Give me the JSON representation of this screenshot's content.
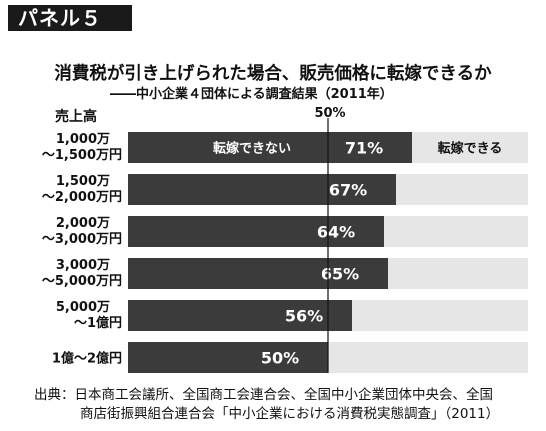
{
  "panel_label": "パネル５",
  "chart_data": {
    "type": "bar",
    "orientation": "horizontal",
    "stacked_percent": true,
    "title": "消費税が引き上げられた場合、販売価格に転嫁できるか",
    "subtitle": "――中小企業４団体による調査結果（2011年）",
    "ylabel": "売上高",
    "midline_label": "50%",
    "xlim": [
      0,
      100
    ],
    "categories": [
      [
        "1,000万",
        "～1,500万円"
      ],
      [
        "1,500万",
        "～2,000万円"
      ],
      [
        "2,000万",
        "～3,000万円"
      ],
      [
        "3,000万",
        "～5,000万円"
      ],
      [
        "5,000万",
        "～1億円"
      ],
      [
        "1億～2億円"
      ]
    ],
    "series": [
      {
        "name": "転嫁できない",
        "values": [
          71,
          67,
          64,
          65,
          56,
          50
        ]
      },
      {
        "name": "転嫁できる",
        "values": [
          29,
          33,
          36,
          35,
          44,
          50
        ]
      }
    ],
    "value_labels": [
      "71%",
      "67%",
      "64%",
      "65%",
      "56%",
      "50%"
    ],
    "colors": {
      "cannot": "#3b3b3b",
      "can": "#e6e6e6",
      "label_text": "#ffffff",
      "midline": "#111111"
    }
  },
  "source": {
    "line1": "出典：日本商工会議所、全国商工会連合会、全国中小企業団体中央会、全国",
    "line2": "商店街振興組合連合会「中小企業における消費税実態調査」（2011）"
  }
}
